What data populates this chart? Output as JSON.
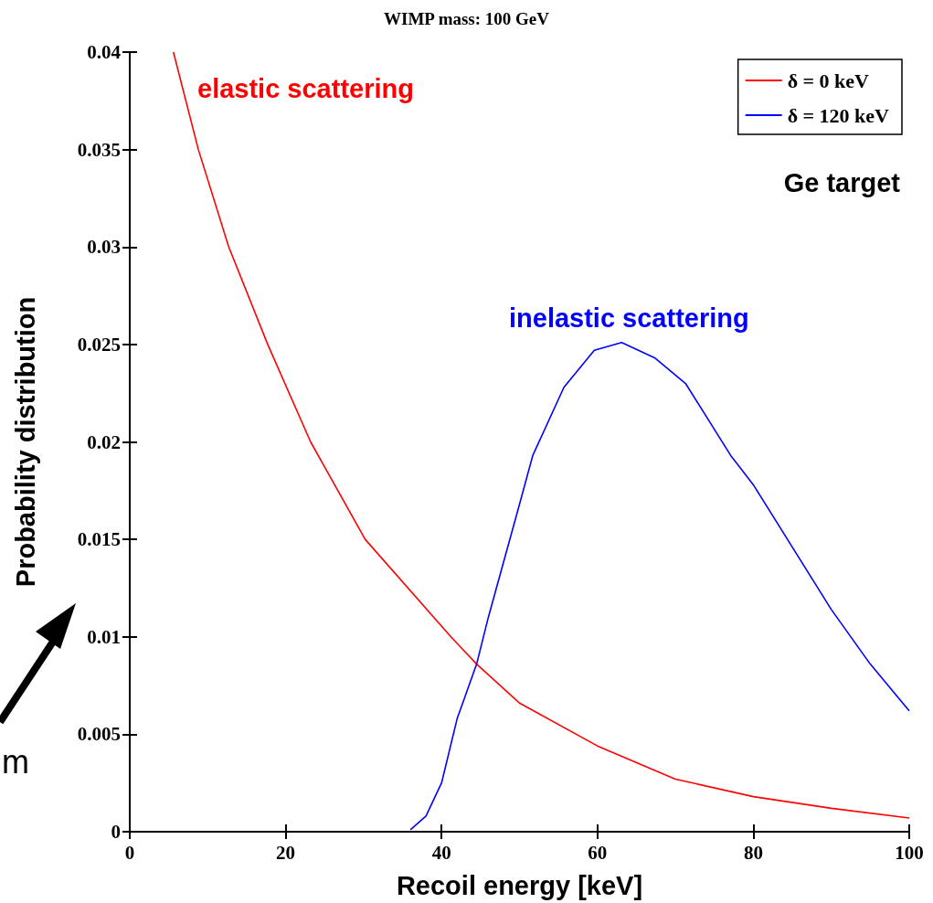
{
  "chart_data": {
    "type": "line",
    "title": "WIMP mass: 100 GeV",
    "xlabel": "Recoil energy [keV]",
    "ylabel": "Probability distribution",
    "xlim": [
      0,
      100
    ],
    "xticks": [
      0,
      20,
      40,
      60,
      80,
      100
    ],
    "ylim": [
      0,
      0.04
    ],
    "yticks": [
      0,
      0.005,
      0.01,
      0.015,
      0.02,
      0.025,
      0.03,
      0.035,
      0.04
    ],
    "grid": false,
    "legend": "top right",
    "marker": "none",
    "line_style": "solid",
    "series": [
      {
        "name": "δ = 0 keV",
        "color": "#ff0000",
        "x": [
          5.6,
          8.8,
          12.7,
          17.7,
          23.2,
          30.2,
          41.2,
          44.5,
          50,
          60,
          70,
          80,
          90,
          100
        ],
        "values": [
          0.04,
          0.035,
          0.03,
          0.025,
          0.02,
          0.015,
          0.01,
          0.0086,
          0.0066,
          0.0044,
          0.0027,
          0.0018,
          0.0012,
          0.0007
        ]
      },
      {
        "name": "δ = 120 keV",
        "color": "#0000ff",
        "x": [
          36,
          38,
          40,
          42,
          44.5,
          46,
          50,
          51.7,
          55.7,
          59.6,
          63.1,
          67.4,
          71.3,
          77.1,
          80,
          85,
          90,
          95,
          100
        ],
        "values": [
          0.0001,
          0.0008,
          0.0025,
          0.0058,
          0.0086,
          0.011,
          0.0168,
          0.0193,
          0.0228,
          0.0247,
          0.0251,
          0.0243,
          0.023,
          0.0193,
          0.0178,
          0.0146,
          0.0114,
          0.0086,
          0.0062
        ]
      }
    ],
    "annotations": [
      "elastic scattering",
      "inelastic scattering",
      "Ge target",
      "m"
    ]
  }
}
